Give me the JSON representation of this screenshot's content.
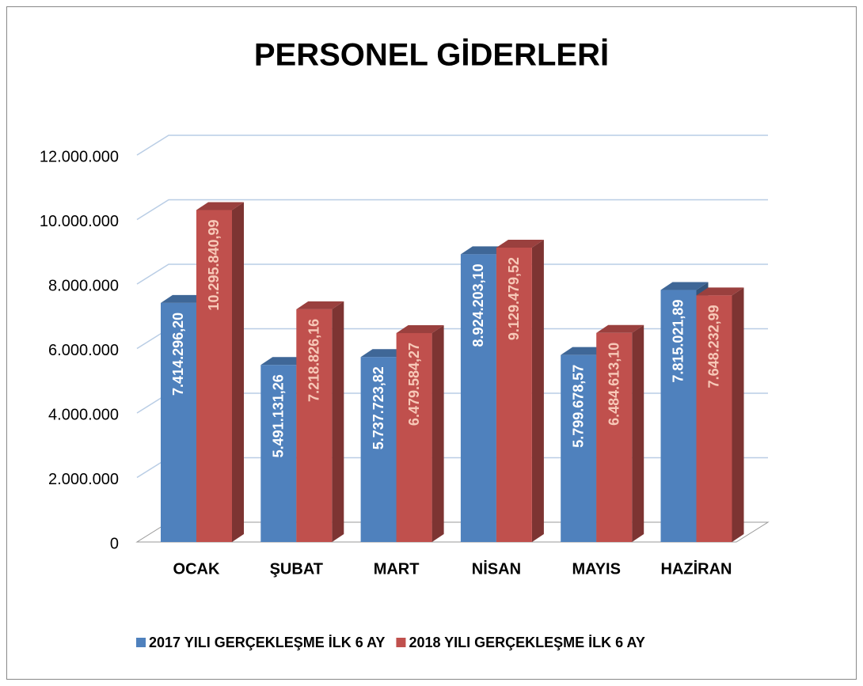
{
  "chart_data": {
    "type": "bar3d",
    "title": "PERSONEL GİDERLERİ",
    "categories": [
      "OCAK",
      "ŞUBAT",
      "MART",
      "NİSAN",
      "MAYIS",
      "HAZİRAN"
    ],
    "series": [
      {
        "name": "2017 YILI GERÇEKLEŞME İLK 6 AY",
        "color": "#4f81bd",
        "label_color": "#ffffff",
        "values": [
          7414296.2,
          5491131.26,
          5737723.82,
          8924203.1,
          5799678.57,
          7815021.89
        ],
        "value_labels": [
          "7.414.296,20",
          "5.491.131,26",
          "5.737.723,82",
          "8.924.203,10",
          "5.799.678,57",
          "7.815.021,89"
        ]
      },
      {
        "name": "2018 YILI GERÇEKLEŞME İLK 6 AY",
        "color": "#c0504d",
        "label_color": "#f7c9b8",
        "values": [
          10295840.99,
          7218826.16,
          6479584.27,
          9129479.52,
          6484613.1,
          7648232.99
        ],
        "value_labels": [
          "10.295.840,99",
          "7.218.826,16",
          "6.479.584,27",
          "9.129.479,52",
          "6.484.613,10",
          "7.648.232,99"
        ]
      }
    ],
    "ylim": [
      0,
      12000000
    ],
    "yticks": [
      0,
      {
        "value": 2000000,
        "label": "2.000.000"
      },
      {
        "value": 4000000,
        "label": "4.000.000"
      },
      {
        "value": 6000000,
        "label": "6.000.000"
      },
      {
        "value": 8000000,
        "label": "8.000.000"
      },
      {
        "value": 10000000,
        "label": "10.000.000"
      },
      {
        "value": 12000000,
        "label": "12.000.000"
      }
    ],
    "grid": true,
    "legend": "bottom"
  }
}
